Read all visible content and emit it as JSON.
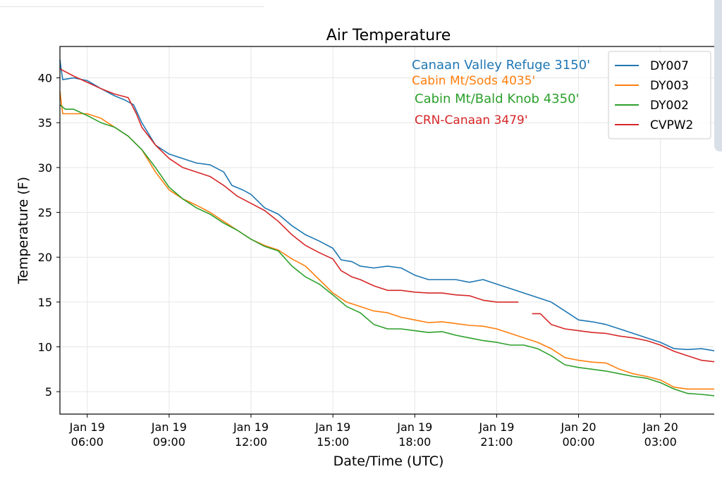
{
  "chart_data": {
    "type": "line",
    "title": "Air Temperature",
    "xlabel": "Date/Time (UTC)",
    "ylabel": "Temperature (F)",
    "x_range_hours": [
      5.0,
      29.1
    ],
    "ylim": [
      2.5,
      43.5
    ],
    "yticks": [
      5,
      10,
      15,
      20,
      25,
      30,
      35,
      40
    ],
    "xticks": [
      {
        "hour": 6,
        "line1": "Jan 19",
        "line2": "06:00"
      },
      {
        "hour": 9,
        "line1": "Jan 19",
        "line2": "09:00"
      },
      {
        "hour": 12,
        "line1": "Jan 19",
        "line2": "12:00"
      },
      {
        "hour": 15,
        "line1": "Jan 19",
        "line2": "15:00"
      },
      {
        "hour": 18,
        "line1": "Jan 19",
        "line2": "18:00"
      },
      {
        "hour": 21,
        "line1": "Jan 19",
        "line2": "21:00"
      },
      {
        "hour": 24,
        "line1": "Jan 20",
        "line2": "00:00"
      },
      {
        "hour": 27,
        "line1": "Jan 20",
        "line2": "03:00"
      }
    ],
    "grid": true,
    "legend_position": "top-right",
    "annotations": [
      {
        "text": "Canaan Valley Refuge 3150'",
        "color": "#1f77b4"
      },
      {
        "text": "Cabin Mt/Sods 4035'",
        "color": "#ff7f0e"
      },
      {
        "text": "Cabin Mt/Bald Knob 4350'",
        "color": "#2ca02c"
      },
      {
        "text": "CRN-Canaan 3479'",
        "color": "#d62728"
      }
    ],
    "series": [
      {
        "name": "DY007",
        "color": "#1f77b4",
        "points": [
          [
            5.0,
            42
          ],
          [
            5.1,
            39.8
          ],
          [
            5.5,
            40
          ],
          [
            6.0,
            39.7
          ],
          [
            6.5,
            38.8
          ],
          [
            7.0,
            38
          ],
          [
            7.4,
            37.5
          ],
          [
            7.7,
            37
          ],
          [
            8.0,
            35
          ],
          [
            8.5,
            32.5
          ],
          [
            9.0,
            31.5
          ],
          [
            9.5,
            31
          ],
          [
            10.0,
            30.5
          ],
          [
            10.5,
            30.3
          ],
          [
            11.0,
            29.5
          ],
          [
            11.3,
            28
          ],
          [
            11.7,
            27.5
          ],
          [
            12.0,
            27
          ],
          [
            12.5,
            25.5
          ],
          [
            13.0,
            24.8
          ],
          [
            13.5,
            23.5
          ],
          [
            14.0,
            22.5
          ],
          [
            14.5,
            21.8
          ],
          [
            15.0,
            21
          ],
          [
            15.3,
            19.7
          ],
          [
            15.7,
            19.5
          ],
          [
            16.0,
            19
          ],
          [
            16.5,
            18.8
          ],
          [
            17.0,
            19
          ],
          [
            17.5,
            18.8
          ],
          [
            18.0,
            18
          ],
          [
            18.5,
            17.5
          ],
          [
            19.0,
            17.5
          ],
          [
            19.5,
            17.5
          ],
          [
            20.0,
            17.2
          ],
          [
            20.5,
            17.5
          ],
          [
            21.0,
            17
          ],
          [
            21.5,
            16.5
          ],
          [
            22.0,
            16
          ],
          [
            22.5,
            15.5
          ],
          [
            23.0,
            15
          ],
          [
            23.5,
            14
          ],
          [
            24.0,
            13
          ],
          [
            24.5,
            12.8
          ],
          [
            25.0,
            12.5
          ],
          [
            25.5,
            12
          ],
          [
            26.0,
            11.5
          ],
          [
            26.5,
            11
          ],
          [
            27.0,
            10.5
          ],
          [
            27.5,
            9.8
          ],
          [
            28.0,
            9.7
          ],
          [
            28.5,
            9.8
          ],
          [
            29.1,
            9.5
          ]
        ]
      },
      {
        "name": "DY003",
        "color": "#ff7f0e",
        "points": [
          [
            5.0,
            38.5
          ],
          [
            5.1,
            36
          ],
          [
            5.5,
            36
          ],
          [
            6.0,
            36
          ],
          [
            6.5,
            35.5
          ],
          [
            7.0,
            34.5
          ],
          [
            7.5,
            33.5
          ],
          [
            8.0,
            32
          ],
          [
            8.5,
            29.5
          ],
          [
            9.0,
            27.5
          ],
          [
            9.5,
            26.5
          ],
          [
            10.0,
            25.8
          ],
          [
            10.5,
            25
          ],
          [
            11.0,
            24
          ],
          [
            11.5,
            23
          ],
          [
            12.0,
            22
          ],
          [
            12.5,
            21.3
          ],
          [
            13.0,
            20.8
          ],
          [
            13.5,
            19.8
          ],
          [
            14.0,
            19
          ],
          [
            14.5,
            17.5
          ],
          [
            15.0,
            16
          ],
          [
            15.5,
            15
          ],
          [
            16.0,
            14.5
          ],
          [
            16.5,
            14
          ],
          [
            17.0,
            13.8
          ],
          [
            17.5,
            13.3
          ],
          [
            18.0,
            13
          ],
          [
            18.5,
            12.7
          ],
          [
            19.0,
            12.8
          ],
          [
            19.5,
            12.6
          ],
          [
            20.0,
            12.4
          ],
          [
            20.5,
            12.3
          ],
          [
            21.0,
            12
          ],
          [
            21.5,
            11.5
          ],
          [
            22.0,
            11
          ],
          [
            22.5,
            10.5
          ],
          [
            23.0,
            9.8
          ],
          [
            23.5,
            8.8
          ],
          [
            24.0,
            8.5
          ],
          [
            24.5,
            8.3
          ],
          [
            25.0,
            8.2
          ],
          [
            25.5,
            7.5
          ],
          [
            26.0,
            7
          ],
          [
            26.5,
            6.7
          ],
          [
            27.0,
            6.3
          ],
          [
            27.5,
            5.5
          ],
          [
            28.0,
            5.3
          ],
          [
            28.5,
            5.3
          ],
          [
            29.1,
            5.3
          ]
        ]
      },
      {
        "name": "DY002",
        "color": "#2ca02c",
        "points": [
          [
            5.0,
            37
          ],
          [
            5.2,
            36.5
          ],
          [
            5.5,
            36.5
          ],
          [
            6.0,
            35.8
          ],
          [
            6.5,
            35
          ],
          [
            7.0,
            34.5
          ],
          [
            7.5,
            33.5
          ],
          [
            8.0,
            32
          ],
          [
            8.5,
            30
          ],
          [
            9.0,
            27.8
          ],
          [
            9.5,
            26.5
          ],
          [
            10.0,
            25.5
          ],
          [
            10.5,
            24.8
          ],
          [
            11.0,
            23.8
          ],
          [
            11.5,
            23
          ],
          [
            12.0,
            22
          ],
          [
            12.5,
            21.2
          ],
          [
            13.0,
            20.7
          ],
          [
            13.5,
            19
          ],
          [
            14.0,
            17.8
          ],
          [
            14.5,
            17
          ],
          [
            15.0,
            15.8
          ],
          [
            15.5,
            14.5
          ],
          [
            16.0,
            13.8
          ],
          [
            16.5,
            12.5
          ],
          [
            17.0,
            12
          ],
          [
            17.5,
            12
          ],
          [
            18.0,
            11.8
          ],
          [
            18.5,
            11.6
          ],
          [
            19.0,
            11.7
          ],
          [
            19.5,
            11.3
          ],
          [
            20.0,
            11
          ],
          [
            20.5,
            10.7
          ],
          [
            21.0,
            10.5
          ],
          [
            21.5,
            10.2
          ],
          [
            22.0,
            10.2
          ],
          [
            22.5,
            9.8
          ],
          [
            23.0,
            9
          ],
          [
            23.5,
            8
          ],
          [
            24.0,
            7.7
          ],
          [
            24.5,
            7.5
          ],
          [
            25.0,
            7.3
          ],
          [
            25.5,
            7
          ],
          [
            26.0,
            6.7
          ],
          [
            26.5,
            6.5
          ],
          [
            27.0,
            6
          ],
          [
            27.5,
            5.3
          ],
          [
            28.0,
            4.8
          ],
          [
            28.5,
            4.7
          ],
          [
            29.1,
            4.5
          ]
        ]
      },
      {
        "name": "CVPW2",
        "color": "#d62728",
        "points": [
          [
            5.0,
            41
          ],
          [
            5.5,
            40.2
          ],
          [
            6.0,
            39.5
          ],
          [
            6.5,
            38.8
          ],
          [
            7.0,
            38.2
          ],
          [
            7.5,
            37.8
          ],
          [
            7.8,
            36
          ],
          [
            8.0,
            34.5
          ],
          [
            8.5,
            32.5
          ],
          [
            9.0,
            31
          ],
          [
            9.5,
            30
          ],
          [
            10.0,
            29.5
          ],
          [
            10.5,
            29
          ],
          [
            11.0,
            28
          ],
          [
            11.5,
            26.8
          ],
          [
            12.0,
            26
          ],
          [
            12.5,
            25.2
          ],
          [
            13.0,
            24
          ],
          [
            13.5,
            22.5
          ],
          [
            14.0,
            21.3
          ],
          [
            14.5,
            20.5
          ],
          [
            15.0,
            19.8
          ],
          [
            15.3,
            18.5
          ],
          [
            15.7,
            17.8
          ],
          [
            16.0,
            17.5
          ],
          [
            16.5,
            16.8
          ],
          [
            17.0,
            16.3
          ],
          [
            17.5,
            16.3
          ],
          [
            18.0,
            16.1
          ],
          [
            18.5,
            16
          ],
          [
            19.0,
            16
          ],
          [
            19.5,
            15.8
          ],
          [
            20.0,
            15.7
          ],
          [
            20.5,
            15.2
          ],
          [
            21.0,
            15
          ],
          [
            21.5,
            15
          ],
          [
            21.8,
            15
          ],
          null,
          [
            22.3,
            13.7
          ],
          [
            22.6,
            13.7
          ],
          [
            23.0,
            12.5
          ],
          [
            23.5,
            12
          ],
          [
            24.0,
            11.8
          ],
          [
            24.5,
            11.6
          ],
          [
            25.0,
            11.5
          ],
          [
            25.5,
            11.2
          ],
          [
            26.0,
            11
          ],
          [
            26.5,
            10.7
          ],
          [
            27.0,
            10.2
          ],
          [
            27.5,
            9.5
          ],
          [
            28.0,
            9
          ],
          [
            28.5,
            8.5
          ],
          [
            29.1,
            8.3
          ]
        ]
      }
    ]
  }
}
